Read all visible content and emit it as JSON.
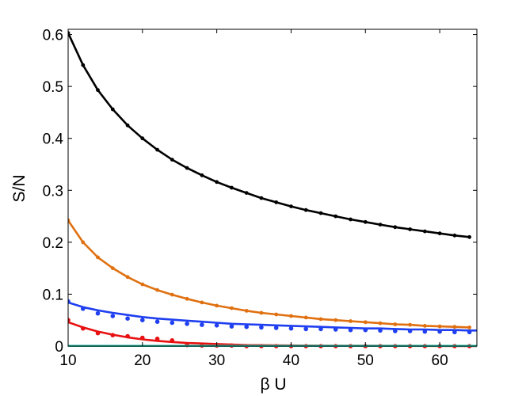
{
  "chart_data": {
    "type": "line",
    "title": "",
    "xlabel": "β U",
    "ylabel": "S/N",
    "xlim": [
      10,
      65
    ],
    "ylim": [
      0,
      0.61
    ],
    "xticks": [
      10,
      20,
      30,
      40,
      50,
      60
    ],
    "xtick_labels": [
      "10",
      "20",
      "30",
      "40",
      "50",
      "60"
    ],
    "yticks": [
      0,
      0.1,
      0.2,
      0.3,
      0.4,
      0.5,
      0.6
    ],
    "ytick_labels": [
      "0",
      "0.1",
      "0.2",
      "0.3",
      "0.4",
      "0.5",
      "0.6"
    ],
    "grid": false,
    "legend": "none",
    "series": [
      {
        "color": "#000000",
        "style": "line+markers",
        "x": [
          10,
          12,
          14,
          16,
          18,
          20,
          22,
          24,
          26,
          28,
          30,
          32,
          34,
          36,
          38,
          40,
          42,
          44,
          46,
          48,
          50,
          52,
          54,
          56,
          58,
          60,
          62,
          64
        ],
        "y": [
          0.603,
          0.541,
          0.493,
          0.456,
          0.425,
          0.4,
          0.378,
          0.359,
          0.343,
          0.329,
          0.316,
          0.305,
          0.295,
          0.285,
          0.277,
          0.269,
          0.262,
          0.256,
          0.25,
          0.244,
          0.239,
          0.234,
          0.229,
          0.225,
          0.221,
          0.217,
          0.213,
          0.21
        ]
      },
      {
        "color": "#e07010",
        "style": "line+markers",
        "x": [
          10,
          12,
          14,
          16,
          18,
          20,
          22,
          24,
          26,
          28,
          30,
          32,
          34,
          36,
          38,
          40,
          42,
          44,
          46,
          48,
          50,
          52,
          54,
          56,
          58,
          60,
          62,
          64
        ],
        "y": [
          0.242,
          0.2,
          0.171,
          0.15,
          0.133,
          0.119,
          0.108,
          0.099,
          0.091,
          0.084,
          0.078,
          0.073,
          0.068,
          0.064,
          0.061,
          0.058,
          0.055,
          0.052,
          0.05,
          0.048,
          0.046,
          0.044,
          0.042,
          0.041,
          0.039,
          0.038,
          0.037,
          0.036
        ]
      },
      {
        "color": "#1f3ff0",
        "style": "line",
        "x": [
          10,
          12,
          14,
          16,
          18,
          20,
          22,
          24,
          26,
          28,
          30,
          32,
          34,
          36,
          38,
          40,
          42,
          44,
          46,
          48,
          50,
          52,
          54,
          56,
          58,
          60,
          62,
          64,
          65
        ],
        "y": [
          0.084,
          0.075,
          0.069,
          0.064,
          0.06,
          0.056,
          0.053,
          0.051,
          0.049,
          0.047,
          0.045,
          0.043,
          0.042,
          0.041,
          0.04,
          0.039,
          0.038,
          0.037,
          0.036,
          0.035,
          0.034,
          0.034,
          0.033,
          0.032,
          0.032,
          0.031,
          0.031,
          0.03,
          0.03
        ]
      },
      {
        "color": "#1f3ff0",
        "style": "markers",
        "x": [
          10,
          12,
          14,
          16,
          18,
          20,
          22,
          24,
          26,
          28,
          30,
          32,
          34,
          36,
          38,
          40,
          42,
          44,
          46,
          48,
          50,
          52,
          54,
          56,
          58,
          60,
          62,
          64
        ],
        "y": [
          0.086,
          0.072,
          0.063,
          0.058,
          0.053,
          0.05,
          0.047,
          0.045,
          0.043,
          0.041,
          0.04,
          0.038,
          0.037,
          0.036,
          0.035,
          0.034,
          0.033,
          0.033,
          0.032,
          0.031,
          0.031,
          0.03,
          0.029,
          0.029,
          0.028,
          0.028,
          0.027,
          0.027
        ]
      },
      {
        "color": "#e81010",
        "style": "line",
        "x": [
          10,
          12,
          14,
          16,
          18,
          20,
          22,
          24,
          26,
          28,
          30,
          34,
          38,
          42,
          46,
          50,
          55,
          60,
          65
        ],
        "y": [
          0.046,
          0.036,
          0.028,
          0.022,
          0.017,
          0.013,
          0.01,
          0.008,
          0.006,
          0.005,
          0.004,
          0.002,
          0.0015,
          0.001,
          0.0008,
          0.0006,
          0.0004,
          0.0003,
          0.0002
        ]
      },
      {
        "color": "#e81010",
        "style": "markers",
        "x": [
          10,
          12,
          14,
          16,
          18,
          20,
          22,
          24,
          26,
          28,
          30,
          32,
          34,
          36,
          38,
          40,
          42,
          44,
          46,
          48,
          50,
          52,
          54,
          56,
          58,
          60,
          62,
          64
        ],
        "y": [
          0.05,
          0.034,
          0.025,
          0.021,
          0.019,
          0.016,
          0.014,
          0.011,
          0.002,
          0.001,
          0.001,
          0.001,
          0,
          0,
          0,
          0,
          0,
          0,
          0,
          0,
          0,
          0,
          0,
          0,
          0,
          0,
          0,
          0
        ]
      },
      {
        "color": "#30c8b0",
        "style": "line",
        "x": [
          10,
          65
        ],
        "y": [
          0.0005,
          0.0005
        ]
      }
    ]
  }
}
